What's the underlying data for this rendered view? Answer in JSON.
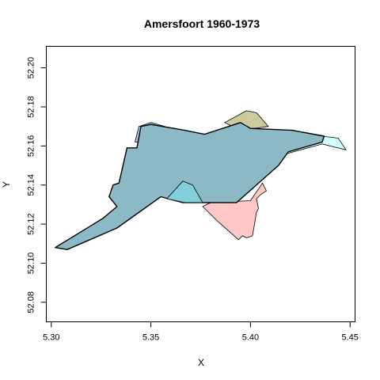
{
  "chart_data": {
    "type": "map",
    "title": "Amersfoort 1960-1973",
    "xlabel": "X",
    "ylabel": "Y",
    "xlim": [
      5.2975,
      5.4525
    ],
    "ylim": [
      52.07,
      52.211
    ],
    "x_ticks": [
      {
        "value": 5.3,
        "label": "5.30"
      },
      {
        "value": 5.35,
        "label": "5.35"
      },
      {
        "value": 5.4,
        "label": "5.40"
      },
      {
        "value": 5.45,
        "label": "5.45"
      }
    ],
    "y_ticks": [
      {
        "value": 52.08,
        "label": "52.08"
      },
      {
        "value": 52.1,
        "label": "52.10"
      },
      {
        "value": 52.12,
        "label": "52.12"
      },
      {
        "value": 52.14,
        "label": "52.14"
      },
      {
        "value": 52.16,
        "label": "52.16"
      },
      {
        "value": 52.18,
        "label": "52.18"
      },
      {
        "value": 52.2,
        "label": "52.20"
      }
    ],
    "grid": false,
    "polygons": [
      {
        "id": "pink",
        "fill": "#ffb3b3",
        "fill_opacity": 0.75,
        "stroke": "#000000",
        "stroke_width": 0.8,
        "points": [
          [
            5.376,
            52.129
          ],
          [
            5.384,
            52.121
          ],
          [
            5.394,
            52.112
          ],
          [
            5.396,
            52.114
          ],
          [
            5.398,
            52.113
          ],
          [
            5.401,
            52.114
          ],
          [
            5.403,
            52.126
          ],
          [
            5.404,
            52.128
          ],
          [
            5.403,
            52.133
          ],
          [
            5.405,
            52.135
          ],
          [
            5.408,
            52.137
          ],
          [
            5.406,
            52.141
          ],
          [
            5.4,
            52.132
          ],
          [
            5.38,
            52.131
          ]
        ]
      },
      {
        "id": "olive",
        "fill": "#a8a85a",
        "fill_opacity": 0.6,
        "stroke": "#000000",
        "stroke_width": 0.8,
        "points": [
          [
            5.387,
            52.172
          ],
          [
            5.398,
            52.178
          ],
          [
            5.403,
            52.177
          ],
          [
            5.409,
            52.17
          ],
          [
            5.395,
            52.168
          ]
        ]
      },
      {
        "id": "cyan",
        "fill": "#ccffff",
        "fill_opacity": 0.9,
        "stroke": "#000000",
        "stroke_width": 0.8,
        "points": [
          [
            5.418,
            52.156
          ],
          [
            5.436,
            52.161
          ],
          [
            5.448,
            52.158
          ],
          [
            5.444,
            52.164
          ],
          [
            5.436,
            52.165
          ],
          [
            5.425,
            52.165
          ]
        ]
      },
      {
        "id": "blue",
        "fill": "#99c8f0",
        "fill_opacity": 0.9,
        "stroke": "#000000",
        "stroke_width": 0.8,
        "points": [
          [
            5.342,
            52.162
          ],
          [
            5.344,
            52.17
          ],
          [
            5.35,
            52.172
          ],
          [
            5.357,
            52.17
          ],
          [
            5.362,
            52.165
          ],
          [
            5.359,
            52.163
          ],
          [
            5.353,
            52.169
          ],
          [
            5.346,
            52.167
          ],
          [
            5.344,
            52.162
          ]
        ]
      },
      {
        "id": "main",
        "fill": "#8bb9c5",
        "fill_opacity": 1.0,
        "stroke": "#000000",
        "stroke_width": 1.4,
        "points": [
          [
            5.302,
            52.108
          ],
          [
            5.308,
            52.107
          ],
          [
            5.333,
            52.118
          ],
          [
            5.355,
            52.134
          ],
          [
            5.366,
            52.131
          ],
          [
            5.393,
            52.131
          ],
          [
            5.414,
            52.15
          ],
          [
            5.419,
            52.157
          ],
          [
            5.436,
            52.162
          ],
          [
            5.437,
            52.165
          ],
          [
            5.421,
            52.168
          ],
          [
            5.4,
            52.169
          ],
          [
            5.395,
            52.172
          ],
          [
            5.377,
            52.166
          ],
          [
            5.367,
            52.168
          ],
          [
            5.35,
            52.171
          ],
          [
            5.345,
            52.17
          ],
          [
            5.343,
            52.159
          ],
          [
            5.338,
            52.159
          ],
          [
            5.334,
            52.141
          ],
          [
            5.331,
            52.14
          ],
          [
            5.329,
            52.134
          ],
          [
            5.333,
            52.129
          ],
          [
            5.326,
            52.123
          ]
        ]
      },
      {
        "id": "teal",
        "fill": "#7dd3dc",
        "fill_opacity": 0.9,
        "stroke": "#000000",
        "stroke_width": 0.8,
        "points": [
          [
            5.358,
            52.133
          ],
          [
            5.366,
            52.142
          ],
          [
            5.371,
            52.14
          ],
          [
            5.376,
            52.131
          ],
          [
            5.367,
            52.131
          ]
        ]
      }
    ]
  }
}
